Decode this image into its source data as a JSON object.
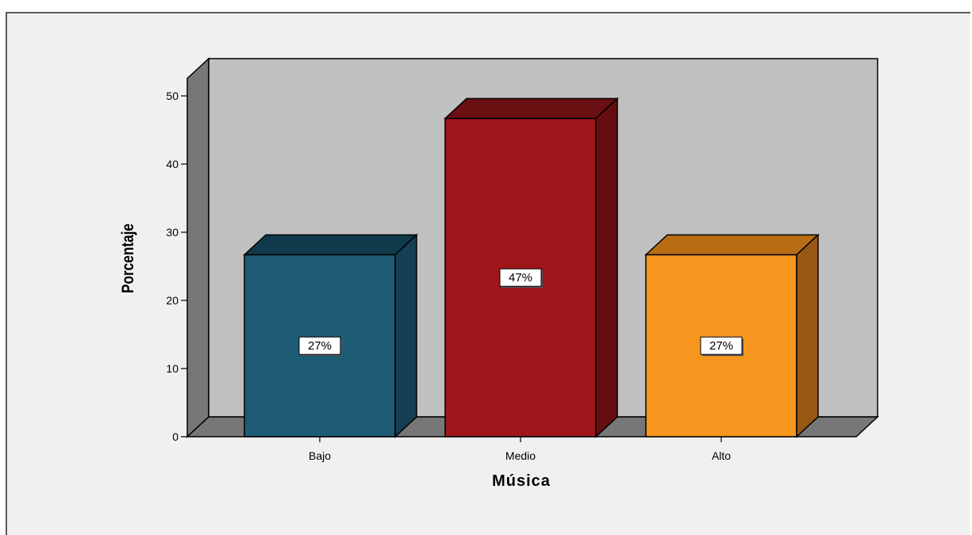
{
  "chart_data": {
    "type": "bar",
    "categories": [
      "Bajo",
      "Medio",
      "Alto"
    ],
    "values": [
      26.7,
      46.7,
      26.7
    ],
    "data_labels": [
      "27%",
      "47%",
      "27%"
    ],
    "title": "",
    "xlabel": "Música",
    "ylabel": "Porcentaje",
    "ylim": [
      0,
      50
    ],
    "yticks": [
      "0",
      "10",
      "20",
      "30",
      "40",
      "50"
    ],
    "grid": false,
    "legend": "none",
    "style": "3d",
    "colors": {
      "bars": [
        "#1e5b74",
        "#9e151a",
        "#f7961f"
      ],
      "bar_tops": [
        "#0f3a4c",
        "#6b0f12",
        "#b86d14"
      ],
      "bar_sides": [
        "#153f52",
        "#650d10",
        "#985712"
      ],
      "back_wall": "#c0c0c0",
      "side_wall": "#777777",
      "floor": "#777777",
      "background": "#f0f0f0"
    }
  }
}
